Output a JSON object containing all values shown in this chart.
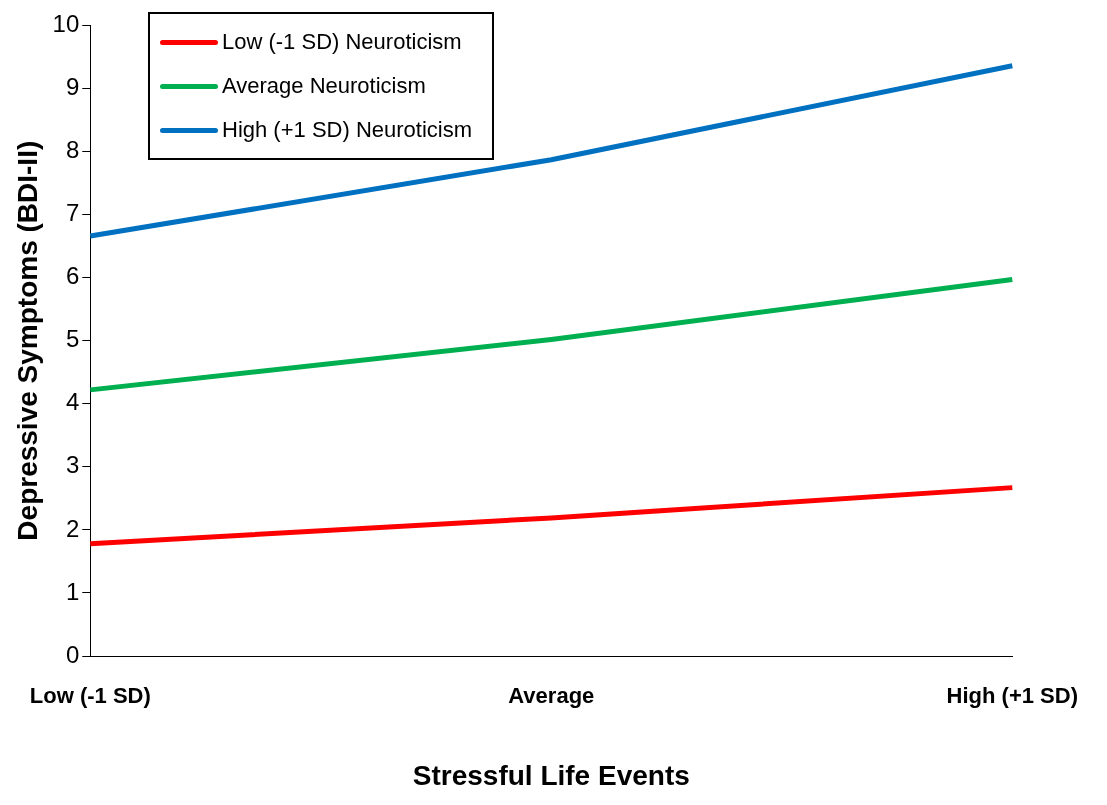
{
  "chart_data": {
    "type": "line",
    "xlabel": "Stressful Life Events",
    "ylabel": "Depressive Symptoms (BDI-II)",
    "categories": [
      "Low (-1 SD)",
      "Average",
      "High (+1 SD)"
    ],
    "series": [
      {
        "name": "Low (-1 SD) Neuroticism",
        "color": "#ff0000",
        "values": [
          1.78,
          2.19,
          2.67
        ]
      },
      {
        "name": "Average Neuroticism",
        "color": "#00b050",
        "values": [
          4.22,
          5.02,
          5.97
        ]
      },
      {
        "name": "High (+1 SD) Neuroticism",
        "color": "#0070c0",
        "values": [
          6.66,
          7.87,
          9.36
        ]
      }
    ],
    "ylim": [
      0,
      10
    ],
    "yticks": [
      0,
      1,
      2,
      3,
      4,
      5,
      6,
      7,
      8,
      9,
      10
    ],
    "grid": false,
    "legend": "top left",
    "marker": "none",
    "line_style": "solid"
  }
}
